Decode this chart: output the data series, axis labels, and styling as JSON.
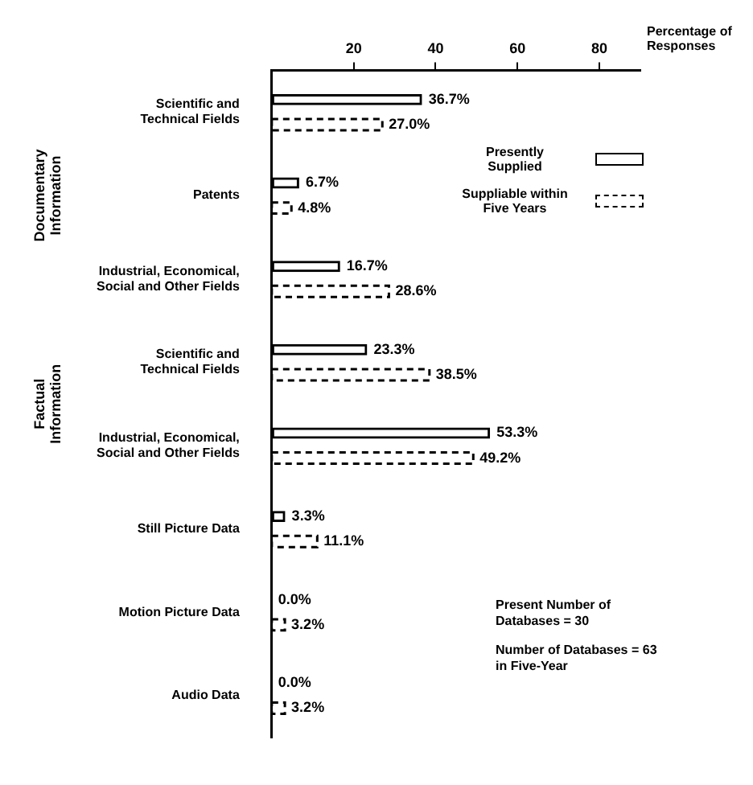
{
  "chart_data": {
    "type": "bar",
    "orientation": "horizontal",
    "xlabel": "Percentage of Responses",
    "categories": [
      "Scientific and\nTechnical Fields",
      "Patents",
      "Industrial, Economical,\nSocial and Other Fields",
      "Scientific and\nTechnical Fields",
      "Industrial, Economical,\nSocial and Other Fields",
      "Still Picture Data",
      "Motion Picture Data",
      "Audio Data"
    ],
    "series": [
      {
        "name": "Presently\nSupplied",
        "color": "#000000",
        "line_style": "solid",
        "values": [
          36.7,
          6.7,
          16.7,
          23.3,
          53.3,
          3.3,
          0.0,
          0.0
        ],
        "value_labels": [
          "36.7%",
          "6.7%",
          "16.7%",
          "23.3%",
          "53.3%",
          "3.3%",
          "0.0%",
          "0.0%"
        ]
      },
      {
        "name": "Suppliable within\nFive Years",
        "color": "#000000",
        "line_style": "dashed",
        "values": [
          27.0,
          4.8,
          28.6,
          38.5,
          49.2,
          11.1,
          3.2,
          3.2
        ],
        "value_labels": [
          "27.0%",
          "4.8%",
          "28.6%",
          "38.5%",
          "49.2%",
          "11.1%",
          "3.2%",
          "3.2%"
        ]
      }
    ],
    "xlim": [
      0,
      90
    ],
    "xticks": [
      20,
      40,
      60,
      80
    ],
    "grid": false,
    "legend": "top right",
    "annotations": [
      "Documentary\nInformation",
      "Factual\nInformation",
      "Present Number of\nDatabases = 30",
      "Number of Databases = 63\nin Five-Year"
    ]
  }
}
